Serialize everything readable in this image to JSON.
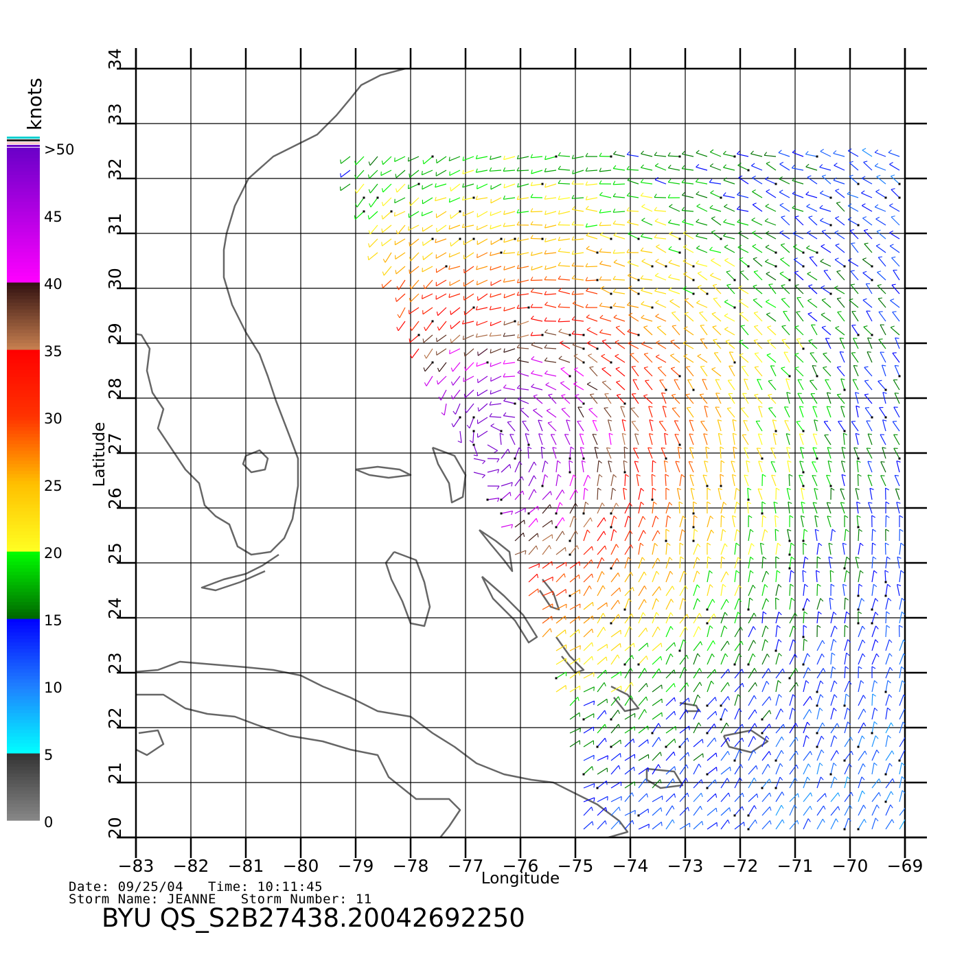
{
  "map": {
    "type": "wind-vector-map",
    "extent": {
      "lon_min": -83,
      "lon_max": -69,
      "lat_min": 20,
      "lat_max": 34
    },
    "grid_step_deg": 1,
    "x_ticks": [
      "-83",
      "-82",
      "-81",
      "-80",
      "-79",
      "-78",
      "-77",
      "-76",
      "-75",
      "-74",
      "-73",
      "-72",
      "-71",
      "-70",
      "-69"
    ],
    "y_ticks": [
      "20",
      "21",
      "22",
      "23",
      "24",
      "25",
      "26",
      "27",
      "28",
      "29",
      "30",
      "31",
      "32",
      "33",
      "34"
    ],
    "xlabel": "Longitude",
    "ylabel": "Latitude",
    "storm_center": {
      "lon": -76.5,
      "lat": 27.2
    },
    "swath_west_edge": [
      [
        -79.4,
        32.6
      ],
      [
        -77.8,
        28.6
      ],
      [
        -76.3,
        25.5
      ],
      [
        -75.5,
        23.2
      ],
      [
        -75.0,
        21.0
      ]
    ],
    "coastline_color": "#666666"
  },
  "colorbar": {
    "title": "knots",
    "labels": [
      ">50",
      "45",
      "40",
      "35",
      "30",
      "25",
      "20",
      "15",
      "10",
      "5",
      "0"
    ],
    "stops": [
      {
        "knots": 0,
        "color": "#888888"
      },
      {
        "knots": 5,
        "color": "#333333"
      },
      {
        "knots": 5.01,
        "color": "#00ffff"
      },
      {
        "knots": 10,
        "color": "#1f7fff"
      },
      {
        "knots": 15,
        "color": "#0000ff"
      },
      {
        "knots": 15.01,
        "color": "#006600"
      },
      {
        "knots": 20,
        "color": "#00ff00"
      },
      {
        "knots": 20.01,
        "color": "#ffff22"
      },
      {
        "knots": 25,
        "color": "#ffc000"
      },
      {
        "knots": 30,
        "color": "#ff3300"
      },
      {
        "knots": 35,
        "color": "#ff0000"
      },
      {
        "knots": 35.01,
        "color": "#c88050"
      },
      {
        "knots": 40,
        "color": "#301010"
      },
      {
        "knots": 40.01,
        "color": "#ff00ff"
      },
      {
        "knots": 50,
        "color": "#6a00c8"
      }
    ]
  },
  "info": {
    "line1": "Date: 09/25/04   Time: 10:11:45",
    "line2": "Storm Name: JEANNE   Storm Number: 11"
  },
  "product_id": "BYU QS_S2B27438.20042692250"
}
